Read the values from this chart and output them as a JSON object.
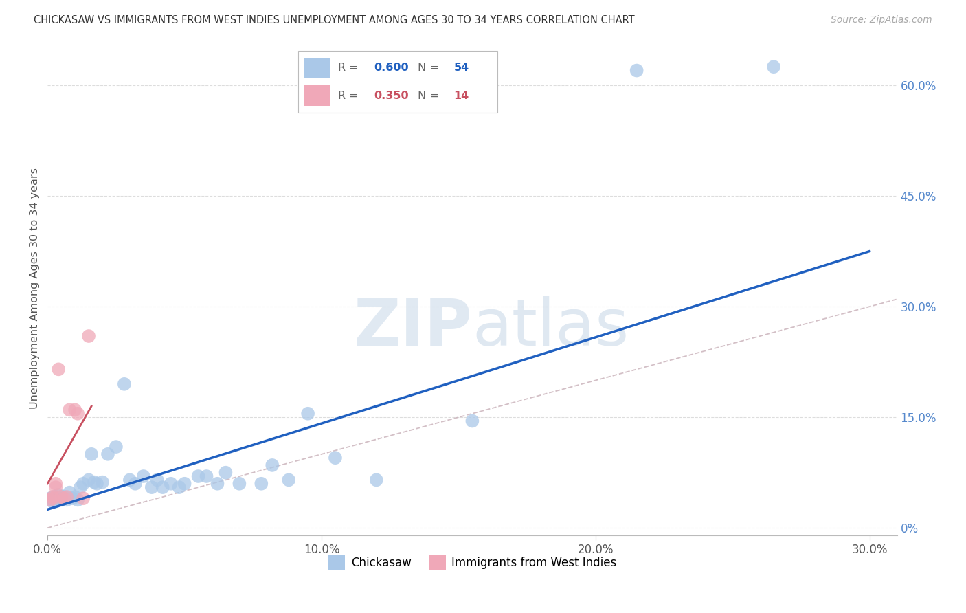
{
  "title": "CHICKASAW VS IMMIGRANTS FROM WEST INDIES UNEMPLOYMENT AMONG AGES 30 TO 34 YEARS CORRELATION CHART",
  "source": "Source: ZipAtlas.com",
  "ylabel_label": "Unemployment Among Ages 30 to 34 years",
  "xlim": [
    0.0,
    0.31
  ],
  "ylim": [
    -0.01,
    0.66
  ],
  "legend1_label": "Chickasaw",
  "legend2_label": "Immigrants from West Indies",
  "R1_val": "0.600",
  "N1_val": "54",
  "R2_val": "0.350",
  "N2_val": "14",
  "color_blue": "#aac8e8",
  "color_pink": "#f0a8b8",
  "trendline1_color": "#2060c0",
  "trendline2_color": "#c85060",
  "diagonal_color": "#c8b0b8",
  "background_color": "#ffffff",
  "watermark_zip": "ZIP",
  "watermark_atlas": "atlas",
  "chickasaw_x": [
    0.001,
    0.002,
    0.002,
    0.002,
    0.003,
    0.003,
    0.003,
    0.003,
    0.004,
    0.004,
    0.004,
    0.005,
    0.005,
    0.005,
    0.006,
    0.006,
    0.007,
    0.008,
    0.009,
    0.01,
    0.011,
    0.012,
    0.013,
    0.015,
    0.016,
    0.017,
    0.018,
    0.02,
    0.022,
    0.025,
    0.028,
    0.03,
    0.032,
    0.035,
    0.038,
    0.04,
    0.042,
    0.045,
    0.048,
    0.05,
    0.055,
    0.058,
    0.062,
    0.065,
    0.07,
    0.078,
    0.082,
    0.088,
    0.095,
    0.105,
    0.12,
    0.155,
    0.215,
    0.265
  ],
  "chickasaw_y": [
    0.04,
    0.038,
    0.042,
    0.035,
    0.04,
    0.038,
    0.042,
    0.036,
    0.045,
    0.038,
    0.04,
    0.042,
    0.038,
    0.04,
    0.042,
    0.04,
    0.038,
    0.048,
    0.04,
    0.042,
    0.038,
    0.055,
    0.06,
    0.065,
    0.1,
    0.062,
    0.06,
    0.062,
    0.1,
    0.11,
    0.195,
    0.065,
    0.06,
    0.07,
    0.055,
    0.065,
    0.055,
    0.06,
    0.055,
    0.06,
    0.07,
    0.07,
    0.06,
    0.075,
    0.06,
    0.06,
    0.085,
    0.065,
    0.155,
    0.095,
    0.065,
    0.145,
    0.62,
    0.625
  ],
  "west_indies_x": [
    0.001,
    0.002,
    0.002,
    0.003,
    0.003,
    0.004,
    0.005,
    0.006,
    0.007,
    0.008,
    0.01,
    0.011,
    0.013,
    0.015
  ],
  "west_indies_y": [
    0.038,
    0.04,
    0.042,
    0.055,
    0.06,
    0.215,
    0.042,
    0.04,
    0.042,
    0.16,
    0.16,
    0.155,
    0.04,
    0.26
  ],
  "trendline1_x0": 0.0,
  "trendline1_y0": 0.025,
  "trendline1_x1": 0.3,
  "trendline1_y1": 0.375,
  "trendline2_x0": 0.0,
  "trendline2_y0": 0.06,
  "trendline2_x1": 0.016,
  "trendline2_y1": 0.165
}
